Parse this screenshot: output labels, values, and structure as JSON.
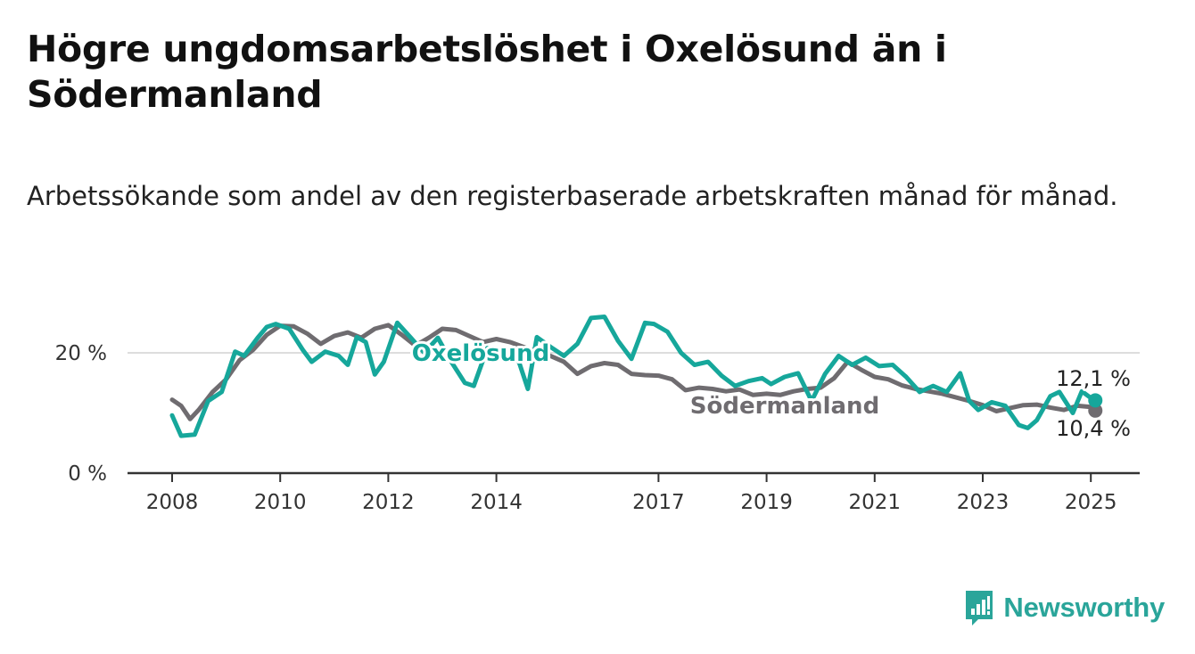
{
  "header": {
    "title": "Högre ungdomsarbetslöshet i Oxelösund än i Södermanland",
    "subtitle": "Arbetssökande som andel av den registerbaserade arbetskraften månad för månad."
  },
  "brand": {
    "name": "Newsworthy",
    "icon": "newsworthy-logo-icon",
    "color": "#2aa59a"
  },
  "colors": {
    "oxelosund": "#16a79b",
    "sodermanland": "#6f6c70",
    "axis": "#333333",
    "grid": "#dddddd"
  },
  "chart_data": {
    "type": "line",
    "title": "Högre ungdomsarbetslöshet i Oxelösund än i Södermanland",
    "subtitle": "Arbetssökande som andel av den registerbaserade arbetskraften månad för månad.",
    "xlabel": "",
    "ylabel": "",
    "xlim": [
      "2007-01",
      "2026-06"
    ],
    "ylim": [
      0,
      27
    ],
    "x_ticks": [
      "2008",
      "2010",
      "2012",
      "2014",
      "2017",
      "2019",
      "2021",
      "2023",
      "2025"
    ],
    "y_ticks": [
      0,
      20
    ],
    "y_tick_labels": [
      "0 %",
      "20 %"
    ],
    "grid": "horizontal",
    "legend": "inline labels",
    "series": [
      {
        "name": "Södermanland",
        "color": "#6f6c70",
        "end_label": "10,4 %",
        "points": [
          [
            "2008-01",
            12.2
          ],
          [
            "2008-03",
            11.2
          ],
          [
            "2008-05",
            9.0
          ],
          [
            "2008-07",
            10.6
          ],
          [
            "2008-10",
            13.5
          ],
          [
            "2009-01",
            15.6
          ],
          [
            "2009-04",
            18.8
          ],
          [
            "2009-07",
            20.5
          ],
          [
            "2009-10",
            23.0
          ],
          [
            "2010-01",
            24.5
          ],
          [
            "2010-04",
            24.4
          ],
          [
            "2010-07",
            23.2
          ],
          [
            "2010-10",
            21.5
          ],
          [
            "2011-01",
            22.8
          ],
          [
            "2011-04",
            23.4
          ],
          [
            "2011-07",
            22.5
          ],
          [
            "2011-10",
            24.0
          ],
          [
            "2012-01",
            24.6
          ],
          [
            "2012-04",
            23.0
          ],
          [
            "2012-07",
            21.2
          ],
          [
            "2012-10",
            22.5
          ],
          [
            "2013-01",
            24.0
          ],
          [
            "2013-04",
            23.8
          ],
          [
            "2013-07",
            22.8
          ],
          [
            "2013-10",
            21.8
          ],
          [
            "2014-01",
            22.3
          ],
          [
            "2014-04",
            21.8
          ],
          [
            "2014-07",
            21.0
          ],
          [
            "2014-10",
            20.2
          ],
          [
            "2015-01",
            19.5
          ],
          [
            "2015-04",
            18.5
          ],
          [
            "2015-07",
            16.5
          ],
          [
            "2015-10",
            17.8
          ],
          [
            "2016-01",
            18.3
          ],
          [
            "2016-04",
            18.0
          ],
          [
            "2016-07",
            16.5
          ],
          [
            "2016-10",
            16.3
          ],
          [
            "2017-01",
            16.2
          ],
          [
            "2017-04",
            15.6
          ],
          [
            "2017-07",
            13.8
          ],
          [
            "2017-10",
            14.2
          ],
          [
            "2018-01",
            14.0
          ],
          [
            "2018-04",
            13.6
          ],
          [
            "2018-07",
            13.9
          ],
          [
            "2018-10",
            13.0
          ],
          [
            "2019-01",
            13.2
          ],
          [
            "2019-04",
            13.0
          ],
          [
            "2019-07",
            13.6
          ],
          [
            "2019-10",
            14.0
          ],
          [
            "2020-01",
            14.2
          ],
          [
            "2020-04",
            15.8
          ],
          [
            "2020-07",
            18.5
          ],
          [
            "2020-10",
            17.2
          ],
          [
            "2021-01",
            16.0
          ],
          [
            "2021-04",
            15.6
          ],
          [
            "2021-07",
            14.6
          ],
          [
            "2021-10",
            14.0
          ],
          [
            "2022-01",
            13.6
          ],
          [
            "2022-04",
            13.2
          ],
          [
            "2022-07",
            12.6
          ],
          [
            "2022-10",
            12.0
          ],
          [
            "2023-01",
            11.3
          ],
          [
            "2023-04",
            10.3
          ],
          [
            "2023-07",
            10.8
          ],
          [
            "2023-10",
            11.3
          ],
          [
            "2024-01",
            11.4
          ],
          [
            "2024-04",
            10.9
          ],
          [
            "2024-07",
            10.5
          ],
          [
            "2024-10",
            11.2
          ],
          [
            "2025-01",
            11.0
          ],
          [
            "2025-02",
            10.4
          ]
        ]
      },
      {
        "name": "Oxelösund",
        "color": "#16a79b",
        "end_label": "12,1 %",
        "points": [
          [
            "2008-01",
            9.6
          ],
          [
            "2008-03",
            6.2
          ],
          [
            "2008-06",
            6.4
          ],
          [
            "2008-09",
            12.0
          ],
          [
            "2008-12",
            13.5
          ],
          [
            "2009-03",
            20.2
          ],
          [
            "2009-05",
            19.5
          ],
          [
            "2009-08",
            22.5
          ],
          [
            "2009-10",
            24.3
          ],
          [
            "2009-12",
            24.8
          ],
          [
            "2010-03",
            24.0
          ],
          [
            "2010-06",
            20.5
          ],
          [
            "2010-08",
            18.5
          ],
          [
            "2010-11",
            20.2
          ],
          [
            "2011-02",
            19.5
          ],
          [
            "2011-04",
            18.0
          ],
          [
            "2011-06",
            22.6
          ],
          [
            "2011-08",
            21.8
          ],
          [
            "2011-10",
            16.4
          ],
          [
            "2011-12",
            18.5
          ],
          [
            "2012-03",
            25.0
          ],
          [
            "2012-06",
            22.5
          ],
          [
            "2012-09",
            20.0
          ],
          [
            "2012-12",
            22.5
          ],
          [
            "2013-03",
            18.5
          ],
          [
            "2013-06",
            15.0
          ],
          [
            "2013-08",
            14.5
          ],
          [
            "2013-11",
            20.8
          ],
          [
            "2014-03",
            19.8
          ],
          [
            "2014-06",
            18.5
          ],
          [
            "2014-08",
            14.0
          ],
          [
            "2014-10",
            22.6
          ],
          [
            "2015-01",
            21.0
          ],
          [
            "2015-04",
            19.5
          ],
          [
            "2015-07",
            21.5
          ],
          [
            "2015-10",
            25.8
          ],
          [
            "2016-01",
            26.0
          ],
          [
            "2016-04",
            22.0
          ],
          [
            "2016-07",
            19.0
          ],
          [
            "2016-10",
            25.0
          ],
          [
            "2016-12",
            24.8
          ],
          [
            "2017-03",
            23.5
          ],
          [
            "2017-06",
            20.0
          ],
          [
            "2017-09",
            18.0
          ],
          [
            "2017-12",
            18.5
          ],
          [
            "2018-03",
            16.2
          ],
          [
            "2018-06",
            14.5
          ],
          [
            "2018-09",
            15.3
          ],
          [
            "2018-12",
            15.8
          ],
          [
            "2019-02",
            14.8
          ],
          [
            "2019-05",
            16.0
          ],
          [
            "2019-08",
            16.6
          ],
          [
            "2019-11",
            12.0
          ],
          [
            "2020-02",
            16.5
          ],
          [
            "2020-05",
            19.5
          ],
          [
            "2020-08",
            18.0
          ],
          [
            "2020-11",
            19.2
          ],
          [
            "2021-02",
            17.8
          ],
          [
            "2021-05",
            18.0
          ],
          [
            "2021-08",
            16.0
          ],
          [
            "2021-11",
            13.5
          ],
          [
            "2022-02",
            14.5
          ],
          [
            "2022-05",
            13.5
          ],
          [
            "2022-08",
            16.6
          ],
          [
            "2022-10",
            12.0
          ],
          [
            "2022-12",
            10.5
          ],
          [
            "2023-03",
            11.8
          ],
          [
            "2023-06",
            11.2
          ],
          [
            "2023-09",
            8.0
          ],
          [
            "2023-11",
            7.5
          ],
          [
            "2024-01",
            8.8
          ],
          [
            "2024-04",
            12.8
          ],
          [
            "2024-06",
            13.5
          ],
          [
            "2024-09",
            10.0
          ],
          [
            "2024-11",
            13.6
          ],
          [
            "2025-01",
            12.5
          ],
          [
            "2025-02",
            12.1
          ]
        ]
      }
    ]
  }
}
